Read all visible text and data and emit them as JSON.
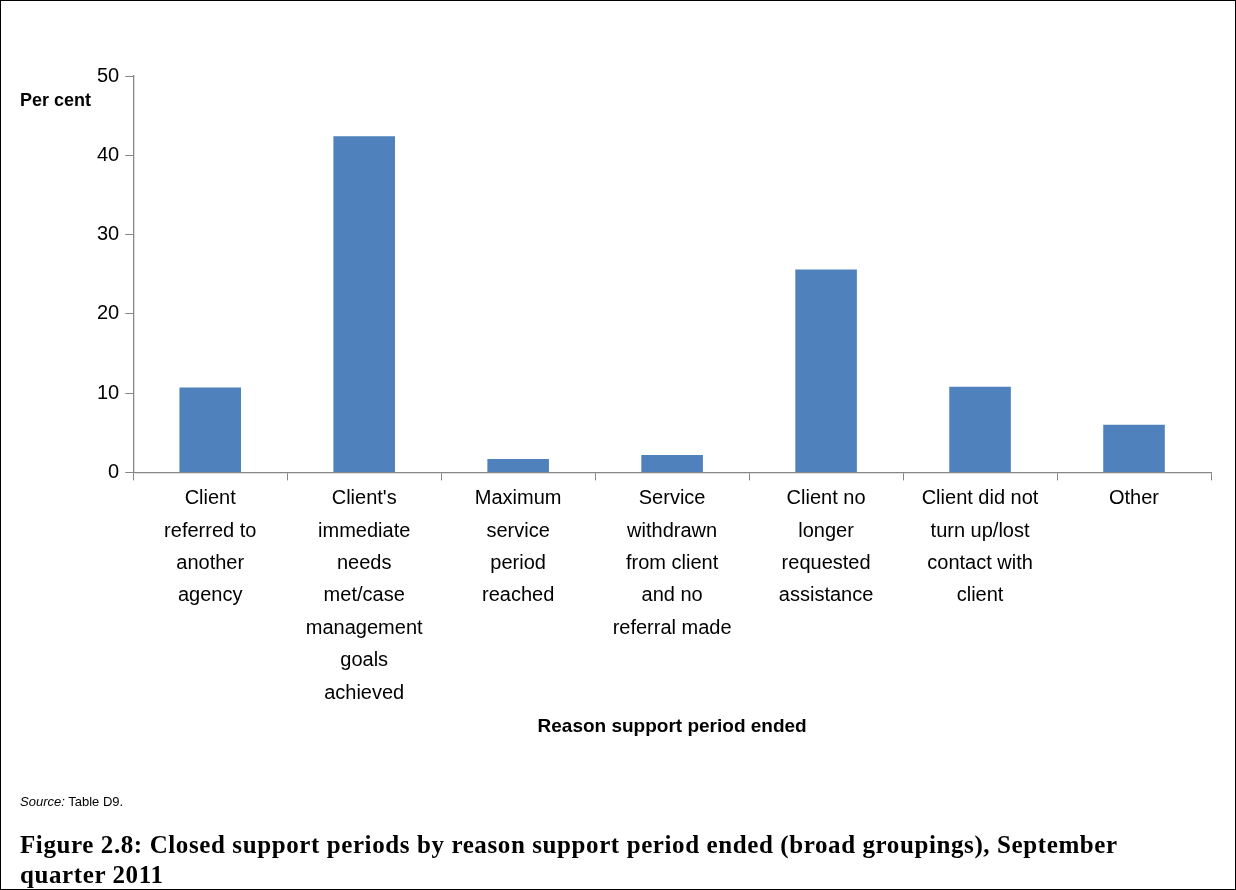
{
  "chart_data": {
    "type": "bar",
    "title": "Figure 2.8: Closed support periods by reason support period ended (broad groupings), September quarter 2011",
    "xlabel": "Reason support period ended",
    "ylabel": "Per cent",
    "categories": [
      "Client referred to another agency",
      "Client's immediate needs met/case management goals achieved",
      "Maximum service period reached",
      "Service withdrawn from client and no referral made",
      "Client no longer requested assistance",
      "Client did not turn up/lost contact with client",
      "Other"
    ],
    "values": [
      10.7,
      42.4,
      1.7,
      2.2,
      25.6,
      10.8,
      6.0
    ],
    "color": "#4f81bd",
    "ylim": [
      0,
      50
    ],
    "yticks": [
      0,
      10,
      20,
      30,
      40,
      50
    ],
    "grid": false,
    "annotations": [
      "Source: Table D9."
    ]
  }
}
